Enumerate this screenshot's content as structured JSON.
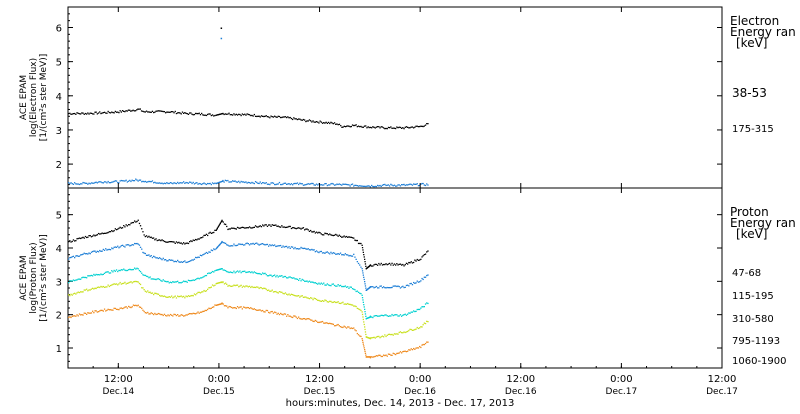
{
  "xlabel": "hours:minutes, Dec. 14, 2013 - Dec. 17, 2013",
  "x_ticks": [
    {
      "t": 12,
      "time": "12:00",
      "day": "Dec.14"
    },
    {
      "t": 24,
      "time": "0:00",
      "day": "Dec.15"
    },
    {
      "t": 36,
      "time": "12:00",
      "day": "Dec.15"
    },
    {
      "t": 48,
      "time": "0:00",
      "day": "Dec.16"
    },
    {
      "t": 60,
      "time": "12:00",
      "day": "Dec.16"
    },
    {
      "t": 72,
      "time": "0:00",
      "day": "Dec.17"
    },
    {
      "t": 84,
      "time": "12:00",
      "day": "Dec.17"
    }
  ],
  "chart_data": [
    {
      "type": "scatter",
      "panel": "electron",
      "ylabel_lines": [
        "ACE EPAM",
        "log(Electron Flux)",
        "[1/(cm²s ster MeV)]"
      ],
      "legend_title": [
        "Electron",
        "Energy ran",
        "[keV]"
      ],
      "xlim": [
        6,
        84
      ],
      "x_unit": "hours since Dec. 14, 2013 00:00 UT",
      "ylim": [
        1.3,
        6.6
      ],
      "yticks": [
        2,
        3,
        4,
        5,
        6
      ],
      "series": [
        {
          "name": "38-53",
          "color": "#000000",
          "x": [
            6,
            8,
            10,
            12,
            14.4,
            15,
            18,
            20,
            22,
            23.6,
            24.4,
            26,
            28,
            30,
            32,
            34,
            36,
            38,
            38.6,
            40,
            42,
            44,
            46,
            48,
            49
          ],
          "y": [
            3.5,
            3.5,
            3.52,
            3.55,
            3.62,
            3.55,
            3.55,
            3.5,
            3.48,
            3.45,
            3.5,
            3.48,
            3.45,
            3.4,
            3.38,
            3.3,
            3.25,
            3.2,
            3.12,
            3.15,
            3.1,
            3.08,
            3.08,
            3.12,
            3.2
          ]
        },
        {
          "name": "175-315",
          "color": "#1e7fd6",
          "x": [
            6,
            8,
            10,
            12,
            14,
            16,
            18,
            20,
            22,
            23.6,
            24.4,
            26,
            28,
            30,
            32,
            34,
            36,
            38,
            40,
            42,
            44,
            46,
            48,
            49
          ],
          "y": [
            1.45,
            1.45,
            1.5,
            1.5,
            1.55,
            1.5,
            1.45,
            1.48,
            1.45,
            1.45,
            1.52,
            1.5,
            1.48,
            1.45,
            1.45,
            1.43,
            1.42,
            1.42,
            1.4,
            1.38,
            1.4,
            1.4,
            1.42,
            1.42
          ]
        }
      ],
      "annotations": [
        {
          "x": 24.2,
          "y": 6.0
        },
        {
          "x": 24.2,
          "y": 5.7
        }
      ]
    },
    {
      "type": "scatter",
      "panel": "proton",
      "ylabel_lines": [
        "ACE EPAM",
        "log(Proton Flux)",
        "[1/(cm²s ster MeV)]"
      ],
      "legend_title": [
        "Proton",
        "Energy ran",
        "[keV]"
      ],
      "xlim": [
        6,
        84
      ],
      "x_unit": "hours since Dec. 14, 2013 00:00 UT",
      "ylim": [
        0.4,
        5.8
      ],
      "yticks": [
        1,
        2,
        3,
        4,
        5
      ],
      "series": [
        {
          "name": "47-68",
          "color": "#000000",
          "x": [
            6,
            8,
            10,
            12,
            14.3,
            15,
            16,
            18,
            20,
            22,
            23.6,
            24.3,
            25,
            28,
            30,
            32,
            34,
            36,
            38,
            40,
            41,
            41.5,
            42,
            44,
            46,
            48,
            49
          ],
          "y": [
            4.2,
            4.35,
            4.45,
            4.6,
            4.85,
            4.4,
            4.3,
            4.2,
            4.15,
            4.35,
            4.55,
            4.85,
            4.6,
            4.65,
            4.7,
            4.65,
            4.6,
            4.45,
            4.4,
            4.3,
            4.1,
            3.4,
            3.5,
            3.55,
            3.5,
            3.7,
            3.95
          ]
        },
        {
          "name": "115-195",
          "color": "#1e7fd6",
          "x": [
            6,
            8,
            10,
            12,
            14.3,
            15,
            16,
            18,
            20,
            22,
            23.6,
            24.3,
            25,
            28,
            30,
            32,
            34,
            36,
            38,
            40,
            41,
            41.5,
            42,
            44,
            46,
            48,
            49
          ],
          "y": [
            3.7,
            3.85,
            3.95,
            4.05,
            4.15,
            3.85,
            3.75,
            3.65,
            3.6,
            3.8,
            4.0,
            4.2,
            4.1,
            4.15,
            4.1,
            4.05,
            4.0,
            3.9,
            3.85,
            3.8,
            3.4,
            2.75,
            2.85,
            2.85,
            2.85,
            3.05,
            3.25
          ]
        },
        {
          "name": "310-580",
          "color": "#00d0d0",
          "x": [
            6,
            8,
            10,
            12,
            14.3,
            15,
            16,
            18,
            20,
            22,
            23.6,
            24.3,
            25,
            28,
            30,
            32,
            34,
            36,
            38,
            40,
            41,
            41.5,
            42,
            44,
            46,
            48,
            49
          ],
          "y": [
            3.0,
            3.15,
            3.25,
            3.35,
            3.4,
            3.2,
            3.1,
            3.0,
            3.0,
            3.15,
            3.35,
            3.4,
            3.3,
            3.3,
            3.2,
            3.15,
            3.05,
            2.95,
            2.9,
            2.8,
            2.6,
            1.9,
            1.95,
            2.0,
            2.0,
            2.2,
            2.4
          ]
        },
        {
          "name": "795-1193",
          "color": "#c8e01e",
          "x": [
            6,
            8,
            10,
            12,
            14.3,
            15,
            16,
            18,
            20,
            22,
            23.6,
            24.3,
            25,
            28,
            30,
            32,
            34,
            36,
            38,
            40,
            41,
            41.5,
            42,
            44,
            46,
            48,
            49
          ],
          "y": [
            2.6,
            2.75,
            2.85,
            2.95,
            3.0,
            2.75,
            2.65,
            2.55,
            2.55,
            2.7,
            2.95,
            3.0,
            2.9,
            2.85,
            2.75,
            2.65,
            2.55,
            2.45,
            2.4,
            2.3,
            2.1,
            1.35,
            1.3,
            1.4,
            1.5,
            1.65,
            1.85
          ]
        },
        {
          "name": "1060-1900",
          "color": "#ee8a1e",
          "x": [
            6,
            8,
            10,
            12,
            14.3,
            15,
            16,
            18,
            20,
            22,
            23.6,
            24.3,
            25,
            28,
            30,
            32,
            34,
            36,
            38,
            40,
            41,
            41.5,
            42,
            44,
            46,
            48,
            49
          ],
          "y": [
            1.95,
            2.05,
            2.15,
            2.2,
            2.3,
            2.1,
            2.05,
            2.0,
            2.0,
            2.1,
            2.3,
            2.35,
            2.25,
            2.2,
            2.1,
            2.0,
            1.9,
            1.8,
            1.7,
            1.6,
            1.3,
            0.75,
            0.75,
            0.8,
            0.9,
            1.05,
            1.25
          ]
        }
      ]
    }
  ]
}
